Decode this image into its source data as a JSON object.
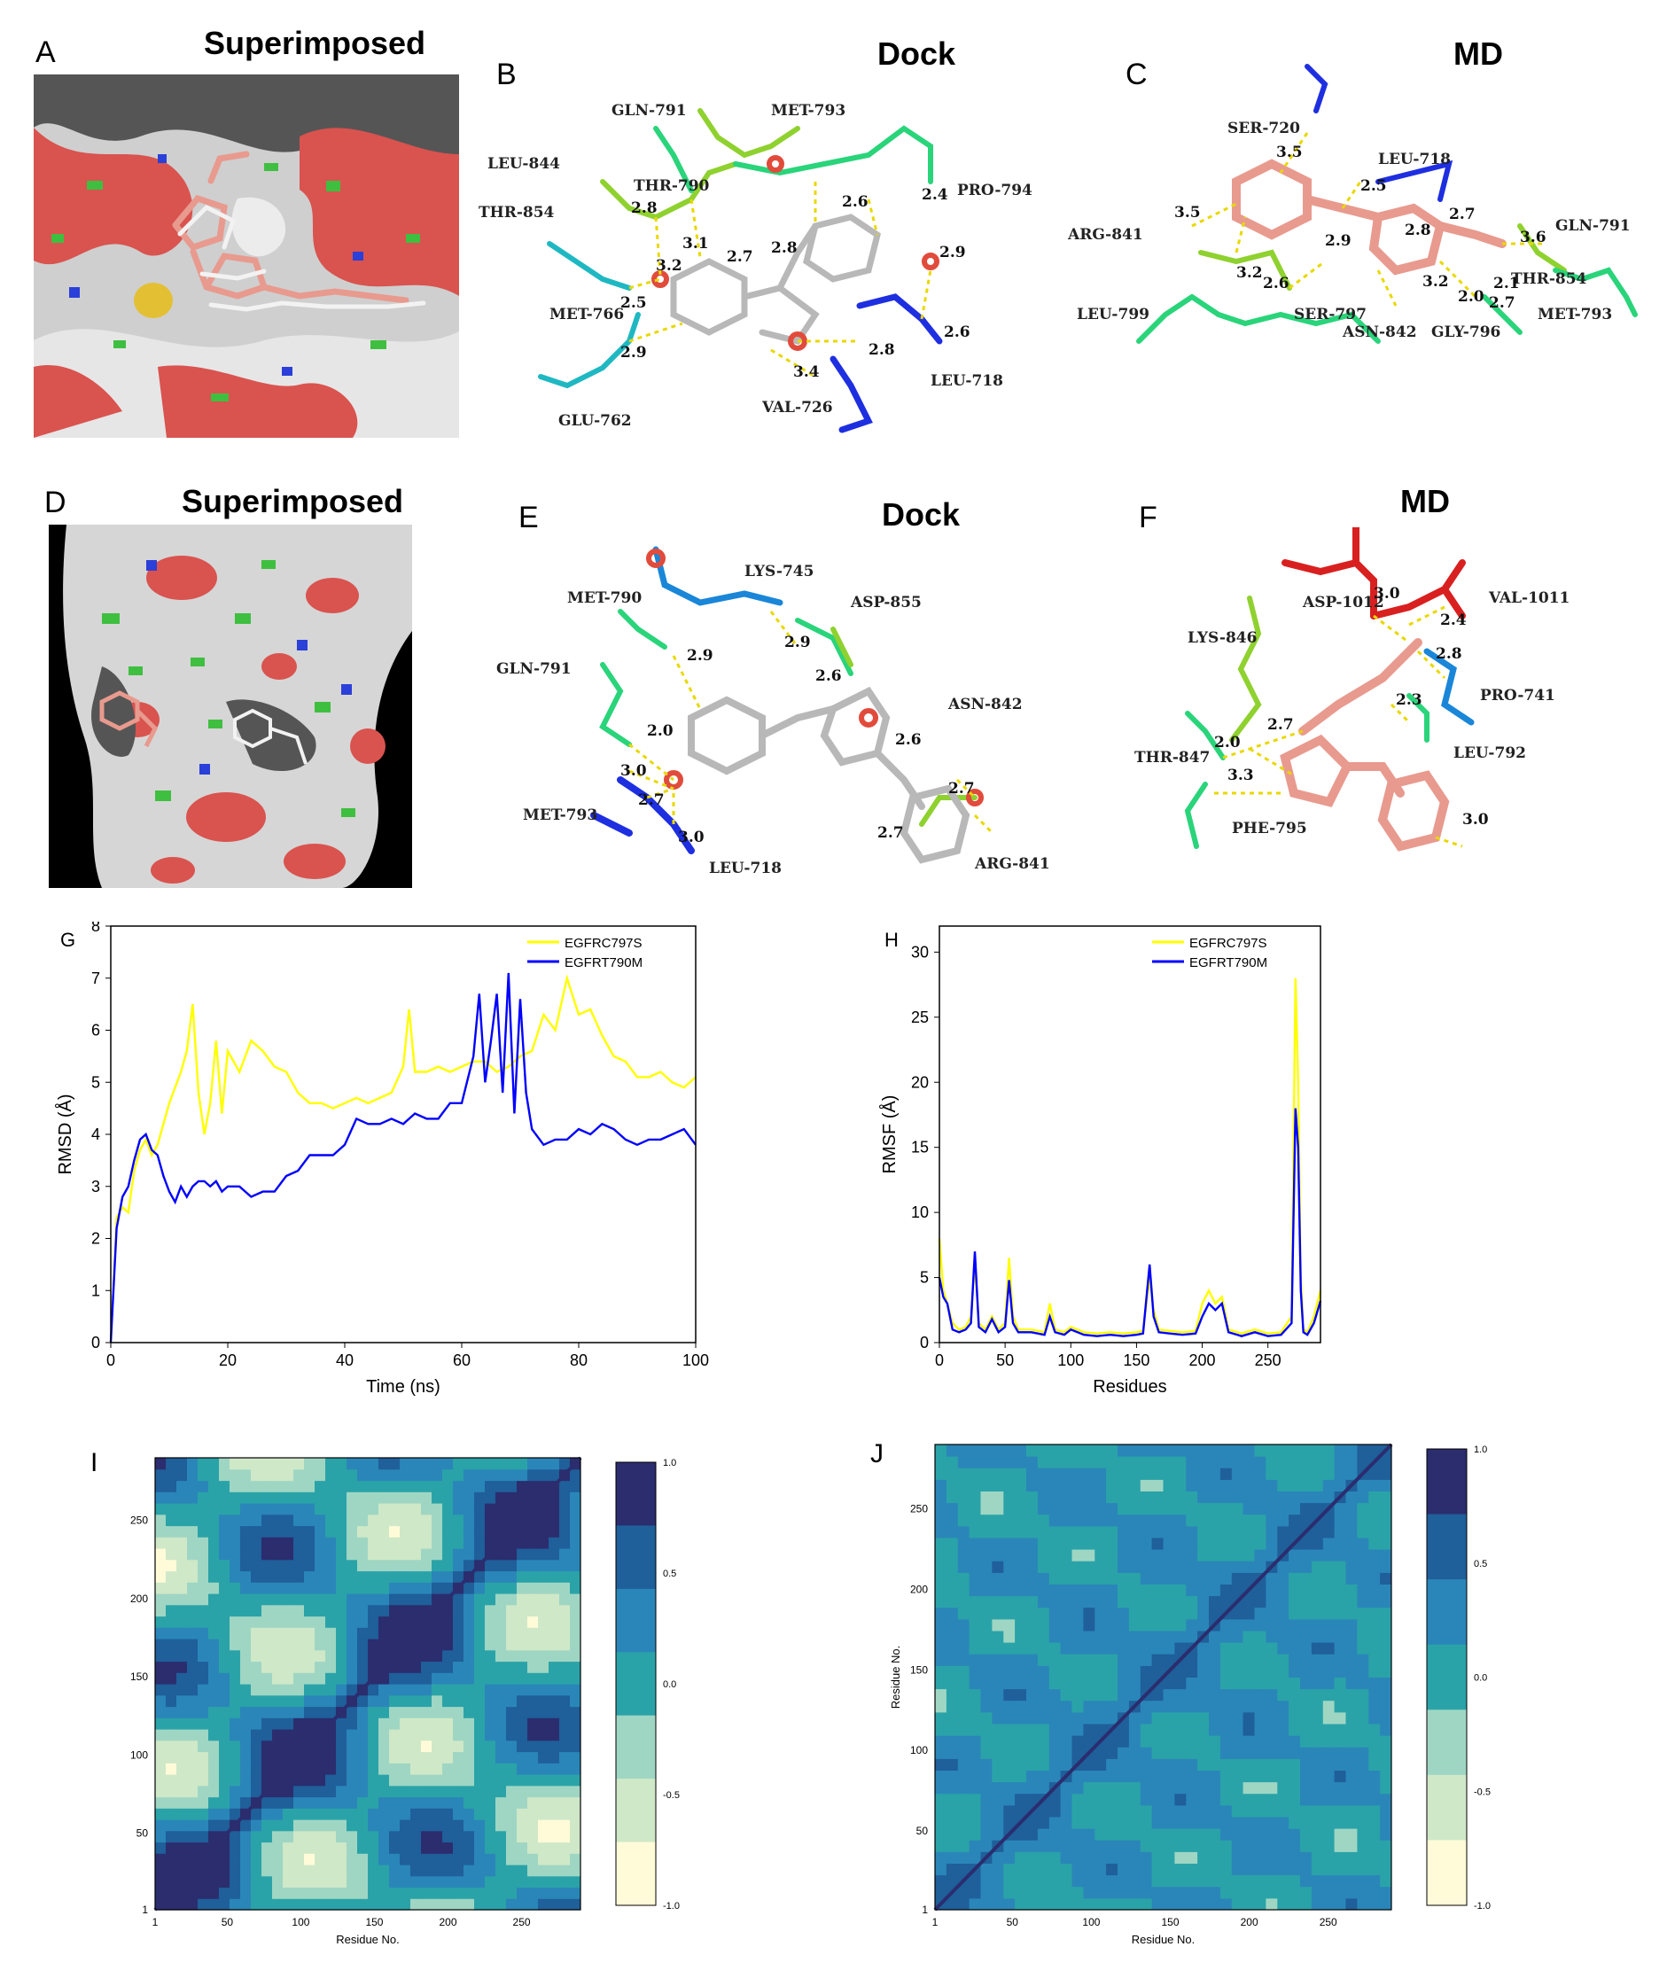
{
  "panel_labels": {
    "A": "A",
    "B": "B",
    "C": "C",
    "D": "D",
    "E": "E",
    "F": "F",
    "G": "G",
    "H": "H",
    "I": "I",
    "J": "J"
  },
  "panel_titles": {
    "A": "Superimposed",
    "B": "Dock",
    "C": "MD",
    "D": "Superimposed",
    "E": "Dock",
    "F": "MD"
  },
  "colors": {
    "surface_red": "#d9534f",
    "surface_green": "#3fbf3f",
    "surface_blue": "#2b3fd9",
    "surface_white": "#e6e6e6",
    "ligand_pink": "#e89a8e",
    "series_yellow": "#ffff00",
    "series_blue": "#0000ff",
    "hbond": "#e8d800",
    "contour_dark": "#2b2d6e",
    "contour_mid": "#2aa3a8",
    "contour_light": "#fffbd8"
  },
  "panel_B": {
    "residues": [
      "GLN-791",
      "MET-793",
      "PRO-794",
      "LEU-844",
      "THR-790",
      "THR-854",
      "MET-766",
      "GLU-762",
      "VAL-726",
      "LEU-718"
    ],
    "distances": [
      "2.8",
      "2.7",
      "2.8",
      "3.1",
      "3.2",
      "2.5",
      "2.9",
      "2.6",
      "2.4",
      "2.9",
      "3.4",
      "2.8",
      "2.6"
    ]
  },
  "panel_C": {
    "residues": [
      "SER-720",
      "LEU-718",
      "ARG-841",
      "GLN-791",
      "THR-854",
      "MET-793",
      "GLY-796",
      "ASN-842",
      "SER-797",
      "LEU-799"
    ],
    "distances": [
      "3.5",
      "3.5",
      "2.5",
      "2.7",
      "2.8",
      "2.9",
      "3.2",
      "2.6",
      "3.2",
      "2.0",
      "2.1",
      "2.7",
      "3.6"
    ]
  },
  "panel_E": {
    "residues": [
      "LYS-745",
      "MET-790",
      "ASP-855",
      "GLN-791",
      "ASN-842",
      "MET-793",
      "LEU-718",
      "ARG-841"
    ],
    "distances": [
      "2.9",
      "2.9",
      "2.6",
      "2.0",
      "3.0",
      "2.7",
      "3.0",
      "2.6",
      "2.7",
      "2.7"
    ]
  },
  "panel_F": {
    "residues": [
      "ASP-1012",
      "VAL-1011",
      "LYS-846",
      "PRO-741",
      "THR-847",
      "LEU-792",
      "PHE-795"
    ],
    "distances": [
      "3.0",
      "2.4",
      "2.8",
      "2.3",
      "2.7",
      "2.0",
      "3.3",
      "3.0"
    ]
  },
  "chart_data": [
    {
      "id": "G",
      "type": "line",
      "xlabel": "Time (ns)",
      "ylabel": "RMSD (Å)",
      "xlim": [
        0,
        100
      ],
      "ylim": [
        0,
        8
      ],
      "xticks": [
        0,
        20,
        40,
        60,
        80,
        100
      ],
      "yticks": [
        0,
        1,
        2,
        3,
        4,
        5,
        6,
        7,
        8
      ],
      "legend_position": "top-right",
      "series": [
        {
          "name": "EGFRC797S",
          "color": "#ffff00",
          "x": [
            0,
            1,
            2,
            3,
            4,
            5,
            6,
            7,
            8,
            9,
            10,
            11,
            12,
            13,
            14,
            15,
            16,
            17,
            18,
            19,
            20,
            22,
            24,
            26,
            28,
            30,
            32,
            34,
            36,
            38,
            40,
            42,
            44,
            46,
            48,
            50,
            51,
            52,
            54,
            56,
            58,
            60,
            62,
            64,
            66,
            68,
            70,
            72,
            74,
            76,
            78,
            80,
            82,
            84,
            86,
            88,
            90,
            92,
            94,
            96,
            98,
            100
          ],
          "y": [
            0,
            2.4,
            2.6,
            2.5,
            3.3,
            3.7,
            3.9,
            3.6,
            3.8,
            4.2,
            4.6,
            4.9,
            5.2,
            5.6,
            6.5,
            4.8,
            4.0,
            4.6,
            5.8,
            4.4,
            5.6,
            5.2,
            5.8,
            5.6,
            5.3,
            5.2,
            4.8,
            4.6,
            4.6,
            4.5,
            4.6,
            4.7,
            4.6,
            4.7,
            4.8,
            5.3,
            6.4,
            5.2,
            5.2,
            5.3,
            5.2,
            5.3,
            5.4,
            5.4,
            5.2,
            5.3,
            5.5,
            5.6,
            6.3,
            6.0,
            7.0,
            6.3,
            6.4,
            5.9,
            5.5,
            5.4,
            5.1,
            5.1,
            5.2,
            5.0,
            4.9,
            5.1
          ]
        },
        {
          "name": "EGFRT790M",
          "color": "#0000ff",
          "x": [
            0,
            1,
            2,
            3,
            4,
            5,
            6,
            7,
            8,
            9,
            10,
            11,
            12,
            13,
            14,
            15,
            16,
            17,
            18,
            19,
            20,
            22,
            24,
            26,
            28,
            30,
            32,
            34,
            36,
            38,
            40,
            42,
            44,
            46,
            48,
            50,
            52,
            54,
            56,
            58,
            60,
            62,
            63,
            64,
            65,
            66,
            67,
            68,
            69,
            70,
            71,
            72,
            74,
            76,
            78,
            80,
            82,
            84,
            86,
            88,
            90,
            92,
            94,
            96,
            98,
            100
          ],
          "y": [
            0,
            2.2,
            2.8,
            3.0,
            3.5,
            3.9,
            4.0,
            3.7,
            3.6,
            3.2,
            2.9,
            2.7,
            3.0,
            2.8,
            3.0,
            3.1,
            3.1,
            3.0,
            3.1,
            2.9,
            3.0,
            3.0,
            2.8,
            2.9,
            2.9,
            3.2,
            3.3,
            3.6,
            3.6,
            3.6,
            3.8,
            4.3,
            4.2,
            4.2,
            4.3,
            4.2,
            4.4,
            4.3,
            4.3,
            4.6,
            4.6,
            5.5,
            6.7,
            5.0,
            5.8,
            6.7,
            4.8,
            7.1,
            4.4,
            6.6,
            4.8,
            4.1,
            3.8,
            3.9,
            3.9,
            4.1,
            4.0,
            4.2,
            4.1,
            3.9,
            3.8,
            3.9,
            3.9,
            4.0,
            4.1,
            3.8
          ]
        }
      ]
    },
    {
      "id": "H",
      "type": "line",
      "xlabel": "Residues",
      "ylabel": "RMSF (Å)",
      "xlim": [
        0,
        290
      ],
      "ylim": [
        0,
        32
      ],
      "xticks": [
        0,
        50,
        100,
        150,
        200,
        250
      ],
      "yticks": [
        0,
        5,
        10,
        15,
        20,
        25,
        30
      ],
      "legend_position": "top-right",
      "series": [
        {
          "name": "EGFRC797S",
          "color": "#ffff00",
          "x": [
            0,
            3,
            6,
            10,
            15,
            20,
            24,
            27,
            30,
            35,
            40,
            45,
            50,
            53,
            56,
            60,
            70,
            80,
            84,
            88,
            95,
            100,
            110,
            120,
            130,
            140,
            150,
            155,
            160,
            163,
            167,
            175,
            185,
            195,
            200,
            205,
            210,
            215,
            220,
            230,
            240,
            250,
            260,
            268,
            271,
            273,
            275,
            277,
            280,
            285,
            290
          ],
          "y": [
            8,
            4,
            3,
            1.5,
            1,
            1.2,
            2,
            6,
            1.5,
            1,
            2,
            1,
            1.5,
            6.5,
            2,
            1,
            1,
            0.8,
            3,
            1,
            0.8,
            1.2,
            0.8,
            0.7,
            0.8,
            0.7,
            0.8,
            0.9,
            5,
            2.5,
            1,
            0.9,
            0.8,
            0.9,
            3,
            4,
            3,
            3.5,
            1,
            0.7,
            1,
            0.7,
            0.8,
            2,
            28,
            20,
            5,
            1,
            0.8,
            2,
            4
          ]
        },
        {
          "name": "EGFRT790M",
          "color": "#0000ff",
          "x": [
            0,
            3,
            6,
            10,
            15,
            20,
            24,
            27,
            30,
            35,
            40,
            45,
            50,
            53,
            56,
            60,
            70,
            80,
            84,
            88,
            95,
            100,
            110,
            120,
            130,
            140,
            150,
            155,
            160,
            163,
            167,
            175,
            185,
            195,
            200,
            205,
            210,
            215,
            220,
            230,
            240,
            250,
            260,
            268,
            271,
            273,
            275,
            277,
            280,
            285,
            290
          ],
          "y": [
            5,
            3.5,
            3,
            1,
            0.8,
            1,
            1.5,
            7,
            1.2,
            0.8,
            1.8,
            0.8,
            1.2,
            4.8,
            1.5,
            0.8,
            0.8,
            0.6,
            2,
            0.8,
            0.6,
            1,
            0.6,
            0.5,
            0.6,
            0.5,
            0.6,
            0.7,
            6,
            2,
            0.8,
            0.7,
            0.6,
            0.7,
            2,
            3,
            2.5,
            3,
            0.8,
            0.5,
            0.8,
            0.5,
            0.6,
            1.5,
            18,
            15,
            4,
            0.8,
            0.6,
            1.5,
            3.2
          ]
        }
      ]
    },
    {
      "id": "I",
      "type": "heatmap",
      "xlabel": "Residue No.",
      "ylabel": "",
      "xlim": [
        1,
        290
      ],
      "ylim": [
        1,
        290
      ],
      "xticks": [
        1,
        50,
        100,
        150,
        200,
        250
      ],
      "yticks": [
        1,
        50,
        100,
        150,
        200,
        250
      ],
      "colorbar_ticks": [
        1.0,
        0.5,
        0.0,
        -0.5,
        -1.0
      ],
      "colorbar_labels": [
        "1.0",
        "0.5",
        "0.0",
        "-0.5",
        "-1.0"
      ]
    },
    {
      "id": "J",
      "type": "heatmap",
      "xlabel": "Residue No.",
      "ylabel": "Residue No.",
      "xlim": [
        1,
        290
      ],
      "ylim": [
        1,
        290
      ],
      "xticks": [
        1,
        50,
        100,
        150,
        200,
        250
      ],
      "yticks": [
        1,
        50,
        100,
        150,
        200,
        250
      ],
      "colorbar_ticks": [
        1.0,
        0.5,
        0.0,
        -0.5,
        -1.0
      ],
      "colorbar_labels": [
        "1.0",
        "0.5",
        "0.0",
        "-0.5",
        "-1.0"
      ]
    }
  ]
}
